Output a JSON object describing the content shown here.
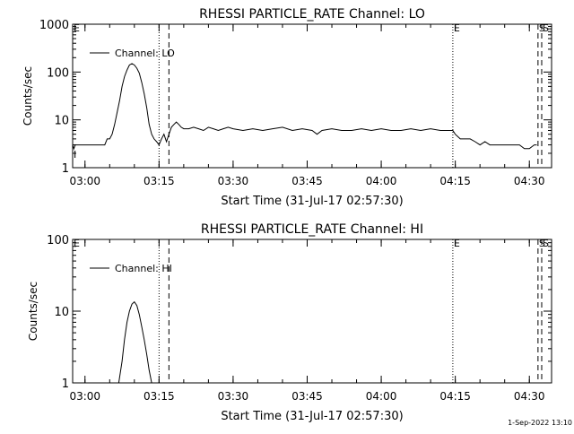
{
  "footer_text": "1-Sep-2022 13:10",
  "chart_data": [
    {
      "type": "line",
      "title": "RHESSI PARTICLE_RATE Channel: LO",
      "xlabel": "Start Time (31-Jul-17 02:57:30)",
      "ylabel": "Counts/sec",
      "y_scale": "log",
      "xlim": [
        "02:57:30",
        "04:34:30"
      ],
      "ylim": [
        1,
        1000
      ],
      "x_ticks": [
        "03:00",
        "03:15",
        "03:30",
        "03:45",
        "04:00",
        "04:15",
        "04:30"
      ],
      "y_ticks": [
        1,
        10,
        100,
        1000
      ],
      "grid": false,
      "legend": {
        "placement": "top-left",
        "entries": [
          "Channel: LO"
        ]
      },
      "markers": [
        {
          "label": "E",
          "x": "04:14:30",
          "style": "dotted"
        },
        {
          "label": "S",
          "x": "04:31:45",
          "style": "dashed"
        },
        {
          "label": "S",
          "x": "04:32:30",
          "style": "dashed"
        },
        {
          "label": "",
          "x": "03:15:00",
          "style": "dotted"
        },
        {
          "label": "",
          "x": "03:17:00",
          "style": "dashed"
        }
      ],
      "edge_labels": {
        "start_top": "E",
        "start_bottom": "I"
      },
      "series": [
        {
          "x": [
            "02:57:30",
            "02:57:45",
            "02:58:00",
            "02:58:30",
            "02:59:00",
            "02:59:30",
            "03:00:00",
            "03:01:00",
            "03:02:00",
            "03:03:00",
            "03:04:00",
            "03:04:30",
            "03:05:00",
            "03:05:30",
            "03:06:00",
            "03:06:30",
            "03:07:00",
            "03:07:30",
            "03:08:00",
            "03:08:30",
            "03:09:00",
            "03:09:30",
            "03:10:00",
            "03:10:30",
            "03:11:00",
            "03:11:30",
            "03:12:00",
            "03:12:30",
            "03:13:00",
            "03:13:30",
            "03:14:00",
            "03:14:30",
            "03:15:00",
            "03:15:30",
            "03:16:00",
            "03:16:30",
            "03:17:00",
            "03:17:30",
            "03:18:00",
            "03:18:30",
            "03:19:00",
            "03:19:30",
            "03:20:00",
            "03:21:00",
            "03:22:00",
            "03:23:00",
            "03:24:00",
            "03:25:00",
            "03:26:00",
            "03:27:00",
            "03:28:00",
            "03:29:00",
            "03:30:00",
            "03:32:00",
            "03:34:00",
            "03:36:00",
            "03:38:00",
            "03:40:00",
            "03:42:00",
            "03:44:00",
            "03:46:00",
            "03:47:00",
            "03:48:00",
            "03:50:00",
            "03:52:00",
            "03:54:00",
            "03:56:00",
            "03:58:00",
            "04:00:00",
            "04:02:00",
            "04:04:00",
            "04:06:00",
            "04:08:00",
            "04:10:00",
            "04:12:00",
            "04:14:00",
            "04:14:30",
            "04:15:00",
            "04:16:00",
            "04:17:00",
            "04:18:00",
            "04:19:00",
            "04:20:00",
            "04:21:00",
            "04:22:00",
            "04:23:00",
            "04:24:00",
            "04:25:00",
            "04:26:00",
            "04:27:00",
            "04:28:00",
            "04:29:00",
            "04:30:00",
            "04:31:00",
            "04:31:30"
          ],
          "y": [
            3,
            2.5,
            3,
            3,
            3,
            3,
            3,
            3,
            3,
            3,
            3,
            4,
            4,
            5,
            8,
            14,
            25,
            50,
            80,
            110,
            140,
            150,
            140,
            120,
            95,
            60,
            35,
            18,
            8,
            5,
            4,
            3.5,
            3,
            4,
            5,
            3.5,
            5,
            7,
            8,
            9,
            8,
            7,
            6.5,
            6.5,
            7,
            6.5,
            6,
            7,
            6.5,
            6,
            6.5,
            7,
            6.5,
            6,
            6.5,
            6,
            6.5,
            7,
            6,
            6.5,
            6,
            5,
            6,
            6.5,
            6,
            6,
            6.5,
            6,
            6.5,
            6,
            6,
            6.5,
            6,
            6.5,
            6,
            6,
            6,
            5,
            4,
            4,
            4,
            3.5,
            3,
            3.5,
            3,
            3,
            3,
            3,
            3,
            3,
            3,
            2.5,
            2.5,
            3,
            3
          ]
        }
      ]
    },
    {
      "type": "line",
      "title": "RHESSI PARTICLE_RATE Channel: HI",
      "xlabel": "Start Time (31-Jul-17 02:57:30)",
      "ylabel": "Counts/sec",
      "y_scale": "log",
      "xlim": [
        "02:57:30",
        "04:34:30"
      ],
      "ylim": [
        1,
        100
      ],
      "x_ticks": [
        "03:00",
        "03:15",
        "03:30",
        "03:45",
        "04:00",
        "04:15",
        "04:30"
      ],
      "y_ticks": [
        1,
        10,
        100
      ],
      "grid": false,
      "legend": {
        "placement": "top-left",
        "entries": [
          "Channel: HI"
        ]
      },
      "markers": [
        {
          "label": "E",
          "x": "04:14:30",
          "style": "dotted"
        },
        {
          "label": "S",
          "x": "04:31:45",
          "style": "dashed"
        },
        {
          "label": "S",
          "x": "04:32:30",
          "style": "dashed"
        },
        {
          "label": "",
          "x": "03:15:00",
          "style": "dotted"
        },
        {
          "label": "",
          "x": "03:17:00",
          "style": "dashed"
        }
      ],
      "edge_labels": {
        "start_top": "E"
      },
      "series": [
        {
          "x": [
            "03:06:50",
            "03:07:30",
            "03:08:00",
            "03:08:30",
            "03:09:00",
            "03:09:30",
            "03:10:00",
            "03:10:30",
            "03:11:00",
            "03:11:30",
            "03:12:00",
            "03:12:30",
            "03:13:00",
            "03:13:30"
          ],
          "y": [
            1,
            2,
            4,
            7,
            10,
            12.5,
            13.5,
            12,
            9,
            6,
            4,
            2.5,
            1.5,
            1
          ]
        }
      ]
    }
  ]
}
